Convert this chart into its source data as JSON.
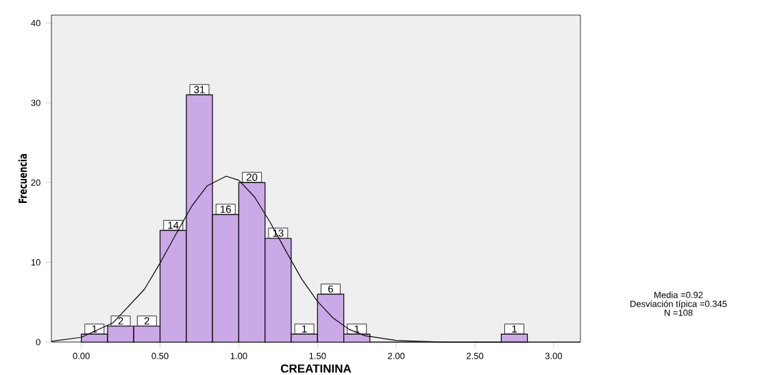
{
  "chart_data": {
    "type": "histogram",
    "xlabel": "CREATININA",
    "ylabel": "Frecuencia",
    "bins": [
      0,
      0.167,
      0.333,
      0.5,
      0.667,
      0.833,
      1.0,
      1.167,
      1.333,
      1.5,
      1.667,
      1.833,
      2.0,
      2.167,
      2.333,
      2.5,
      2.667,
      2.833
    ],
    "values": [
      1,
      2,
      2,
      14,
      31,
      16,
      20,
      13,
      1,
      6,
      1,
      0,
      0,
      0,
      0,
      0,
      1
    ],
    "value_labels": [
      "1",
      "2",
      "2",
      "14",
      "31",
      "16",
      "20",
      "13",
      "1",
      "6",
      "1",
      null,
      null,
      null,
      null,
      null,
      "1"
    ],
    "color": "#cba8e6",
    "series": [
      {
        "type": "line",
        "color": "#000000",
        "x": [
          -0.19,
          0.0,
          0.2,
          0.4,
          0.5,
          0.6,
          0.7,
          0.8,
          0.92,
          1.0,
          1.1,
          1.2,
          1.3,
          1.4,
          1.5,
          1.6,
          1.7,
          1.8,
          2.0,
          2.3,
          3.17
        ],
        "values": [
          0.1,
          0.6,
          2.4,
          6.6,
          9.9,
          13.5,
          17.0,
          19.6,
          20.8,
          20.3,
          18.2,
          15.0,
          11.4,
          7.9,
          5.1,
          3.0,
          1.6,
          0.8,
          0.2,
          0,
          0
        ]
      }
    ],
    "xlim": [
      -0.19,
      3.17
    ],
    "ylim": [
      0,
      41
    ],
    "xticks": [
      {
        "value": 0,
        "label": "0.00"
      },
      {
        "value": 0.5,
        "label": "0.50"
      },
      {
        "value": 1,
        "label": "1.00"
      },
      {
        "value": 1.5,
        "label": "1.50"
      },
      {
        "value": 2,
        "label": "2.00"
      },
      {
        "value": 2.5,
        "label": "2.50"
      },
      {
        "value": 3,
        "label": "3.00"
      }
    ],
    "yticks": [
      0,
      10,
      20,
      30,
      40
    ],
    "grid": false,
    "annotations": [
      "Media =0.92",
      "Desviación típica =0.345",
      "N =108"
    ]
  }
}
